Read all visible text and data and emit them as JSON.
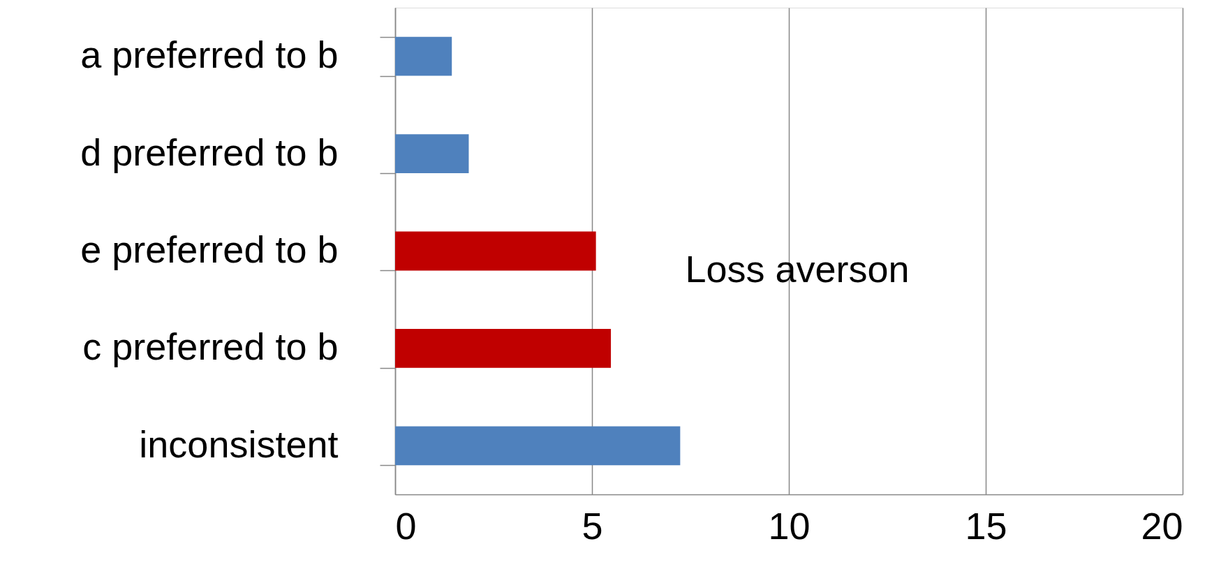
{
  "chart_data": {
    "type": "bar",
    "orientation": "horizontal",
    "categories": [
      "a preferred to b",
      "d preferred to b",
      "e preferred to b",
      "c preferred to b",
      "inconsistent"
    ],
    "values": [
      1.44,
      1.87,
      5.1,
      5.48,
      7.24
    ],
    "colors": [
      "#4f81bd",
      "#4f81bd",
      "#c00000",
      "#c00000",
      "#4f81bd"
    ],
    "xlim": [
      0,
      20
    ],
    "xticks": [
      0,
      5,
      10,
      15,
      20
    ],
    "grid": "x",
    "annotations": [
      "Loss averson"
    ]
  }
}
